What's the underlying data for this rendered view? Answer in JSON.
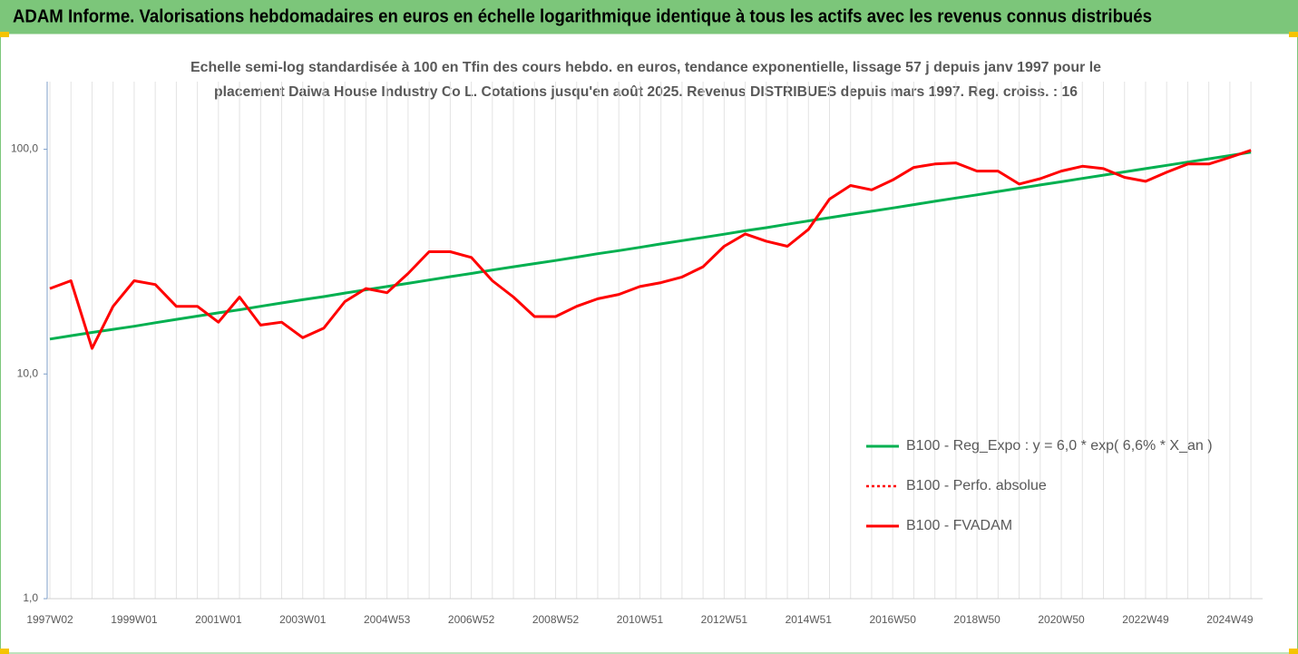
{
  "chart_data": {
    "type": "line",
    "title": "ADAM Informe. Valorisations hebdomadaires en euros en échelle logarithmique identique à tous les actifs avec les revenus connus distribués",
    "subtitle": [
      "Echelle semi-log standardisée à 100 en Tfin des cours hebdo. en euros, tendance exponentielle, lissage 57 j depuis janv 1997 pour le",
      "placement Daiwa House Industry Co L. Cotations jusqu'en août 2025. Revenus DISTRIBUES depuis mars 1997. Reg. croiss. : 16"
    ],
    "categories": [
      "1997W02",
      null,
      null,
      null,
      "1999W01",
      null,
      null,
      null,
      "2001W01",
      null,
      null,
      null,
      "2003W01",
      null,
      null,
      null,
      "2004W53",
      null,
      null,
      null,
      "2006W52",
      null,
      null,
      null,
      "2008W52",
      null,
      null,
      null,
      "2010W51",
      null,
      null,
      null,
      "2012W51",
      null,
      null,
      null,
      "2014W51",
      null,
      null,
      null,
      "2016W50",
      null,
      null,
      null,
      "2018W50",
      null,
      null,
      null,
      "2020W50",
      null,
      null,
      null,
      "2022W49",
      null,
      null,
      null,
      "2024W49",
      null
    ],
    "log_scale": true,
    "ylim": [
      1,
      200
    ],
    "yticks": [
      {
        "value": 1,
        "label": "1,0"
      },
      {
        "value": 10,
        "label": "10,0"
      },
      {
        "value": 100,
        "label": "100,0"
      }
    ],
    "grid": "vertical",
    "legend": "lower right",
    "series": [
      {
        "name": "B100 - Reg_Expo : y = 6,0 * exp( 6,6% *  X_an )",
        "color": "#00b050",
        "style": "solid",
        "values": [
          14.3,
          14.8,
          15.3,
          15.8,
          16.3,
          16.9,
          17.5,
          18.1,
          18.7,
          19.3,
          20.0,
          20.7,
          21.4,
          22.1,
          22.9,
          23.7,
          24.5,
          25.3,
          26.2,
          27.1,
          28.0,
          29.0,
          30.0,
          31.0,
          32.0,
          33.1,
          34.3,
          35.4,
          36.6,
          37.9,
          39.2,
          40.5,
          41.9,
          43.4,
          44.8,
          46.4,
          48.0,
          49.6,
          51.3,
          53.0,
          54.8,
          56.7,
          58.7,
          60.7,
          62.7,
          64.9,
          67.1,
          69.4,
          71.7,
          74.2,
          76.7,
          79.3,
          82.0,
          84.8,
          87.7,
          90.7,
          93.8,
          97.0
        ]
      },
      {
        "name": "B100 - Perfo. absolue",
        "color": "#ff0000",
        "style": "dotted",
        "values": [
          24,
          26,
          13,
          20,
          26,
          25,
          20,
          20,
          17,
          22,
          16.5,
          17,
          14.5,
          16,
          21,
          24,
          23,
          28,
          35,
          35,
          33,
          26,
          22,
          18,
          18,
          20,
          21.6,
          22.6,
          24.5,
          25.5,
          27,
          30,
          37,
          42,
          39,
          37,
          44,
          60,
          69,
          66,
          73,
          83,
          86,
          87,
          80,
          80,
          70,
          74,
          80,
          84,
          82,
          75,
          72,
          79,
          86,
          86,
          92,
          99
        ]
      },
      {
        "name": "B100 - FVADAM",
        "color": "#ff0000",
        "style": "solid",
        "values": [
          24,
          26,
          13,
          20,
          26,
          25,
          20,
          20,
          17,
          22,
          16.5,
          17,
          14.5,
          16,
          21,
          24,
          23,
          28,
          35,
          35,
          33,
          26,
          22,
          18,
          18,
          20,
          21.6,
          22.6,
          24.5,
          25.5,
          27,
          30,
          37,
          42,
          39,
          37,
          44,
          60,
          69,
          66,
          73,
          83,
          86,
          87,
          80,
          80,
          70,
          74,
          80,
          84,
          82,
          75,
          72,
          79,
          86,
          86,
          92,
          99
        ]
      }
    ]
  }
}
